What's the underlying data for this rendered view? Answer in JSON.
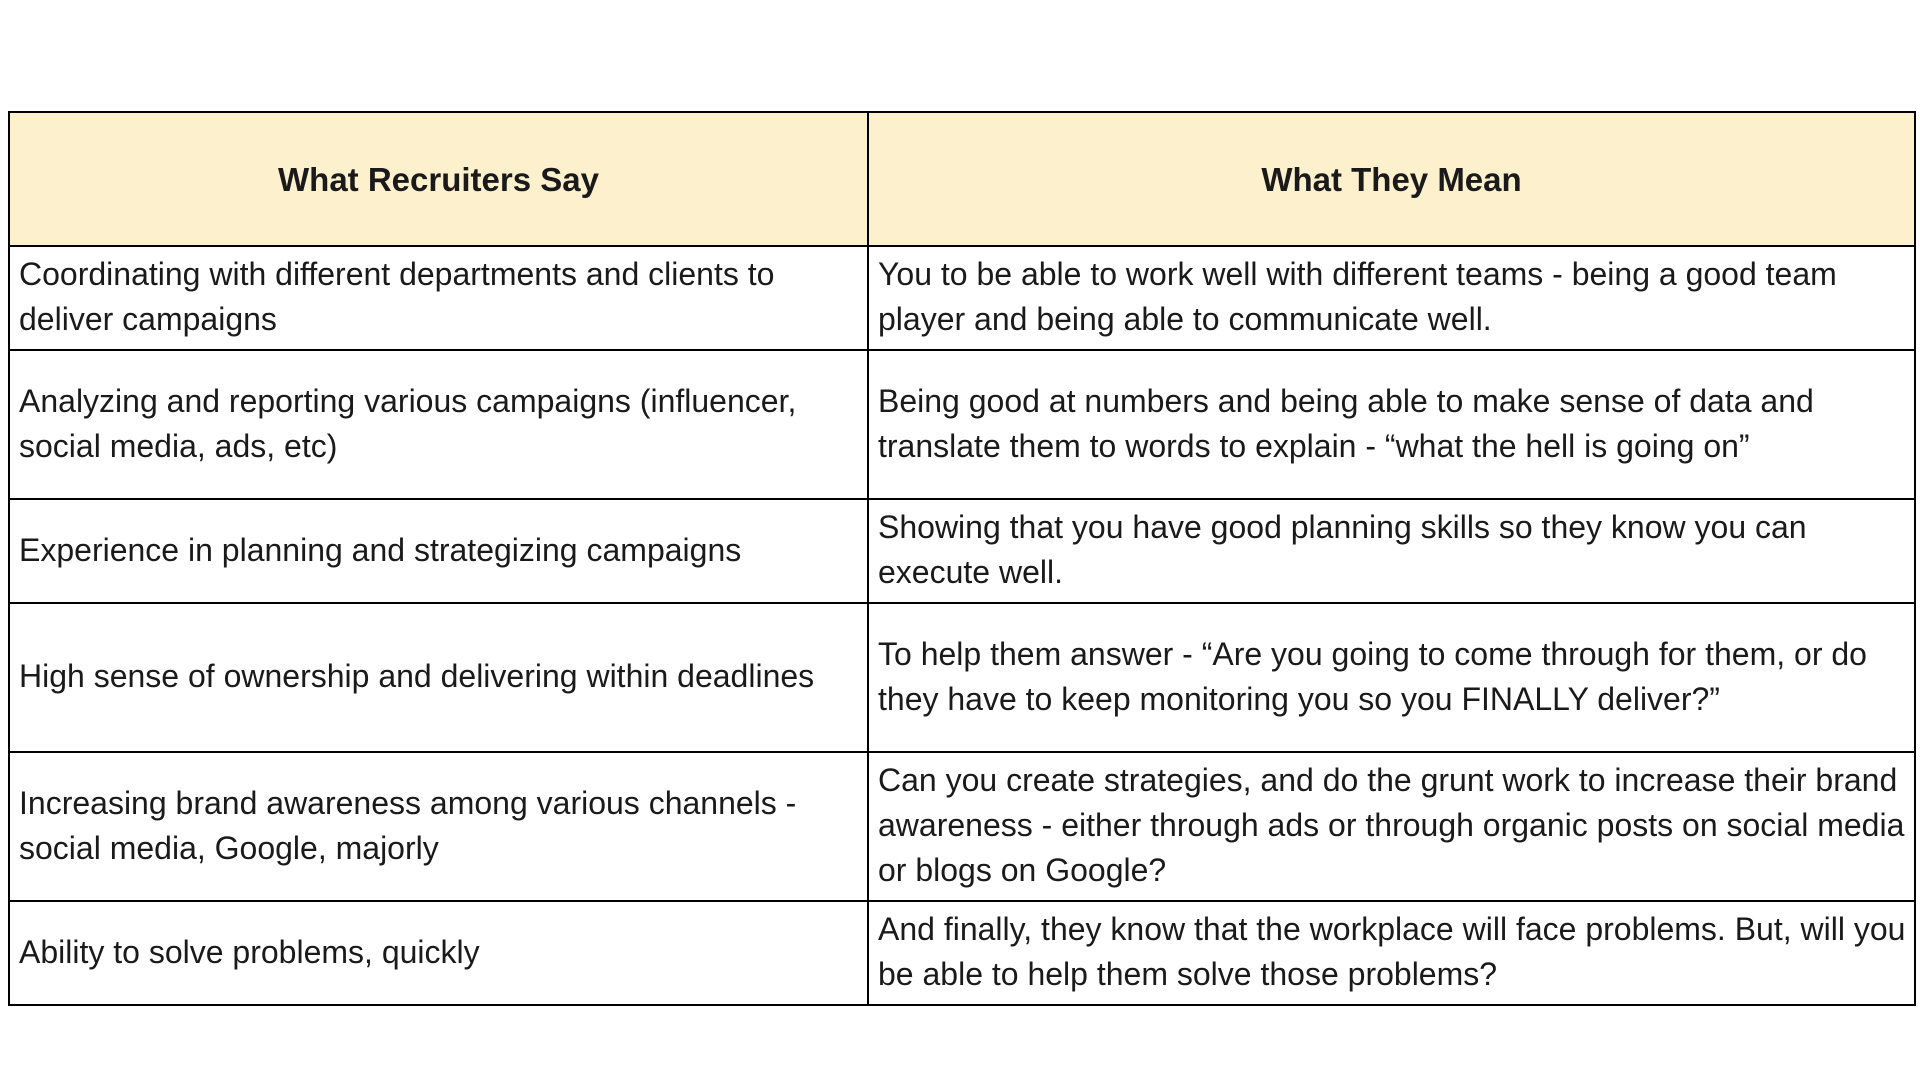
{
  "table": {
    "headers": [
      "What Recruiters Say",
      "What They Mean"
    ],
    "rows": [
      {
        "say": "Coordinating with different departments and clients to deliver campaigns",
        "mean": "You to be able to work well with different teams - being a good team player and being able to communicate well."
      },
      {
        "say": "Analyzing and reporting various campaigns (influencer, social media, ads, etc)",
        "mean": "Being good at numbers and being able to make sense of data and translate them to words to explain - “what the hell is going on”"
      },
      {
        "say": "Experience in planning and strategizing campaigns",
        "mean": "Showing that you have good planning skills so they know you can execute well."
      },
      {
        "say": "High sense of ownership and delivering within deadlines",
        "mean": "To help them answer - “Are you going to come through for them, or do they have to keep monitoring you so you FINALLY deliver?”"
      },
      {
        "say": "Increasing brand awareness among various channels - social media, Google, majorly",
        "mean": "Can you create strategies, and do the grunt work to increase their brand awareness - either through ads or through organic posts on social media or blogs on Google?"
      },
      {
        "say": "Ability to solve problems, quickly",
        "mean": "And finally, they know that the workplace will face problems. But, will you be able to help them solve those problems?"
      }
    ]
  }
}
